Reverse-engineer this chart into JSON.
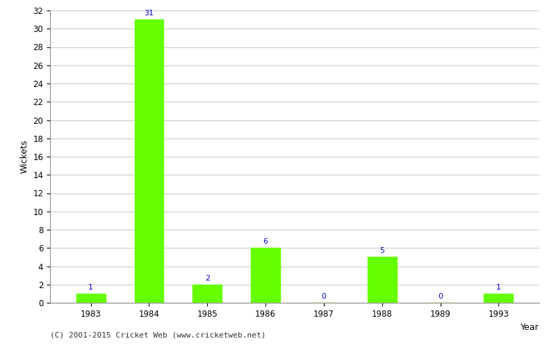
{
  "categories": [
    "1983",
    "1984",
    "1985",
    "1986",
    "1987",
    "1988",
    "1989",
    "1993"
  ],
  "values": [
    1,
    31,
    2,
    6,
    0,
    5,
    0,
    1
  ],
  "bar_color": "#66ff00",
  "bar_edge_color": "#66ff00",
  "title": "",
  "xlabel": "Year",
  "ylabel": "Wickets",
  "ylim": [
    0,
    32
  ],
  "yticks": [
    0,
    2,
    4,
    6,
    8,
    10,
    12,
    14,
    16,
    18,
    20,
    22,
    24,
    26,
    28,
    30,
    32
  ],
  "label_color": "#0000cc",
  "label_fontsize": 8,
  "axis_fontsize": 9,
  "tick_fontsize": 8.5,
  "grid_color": "#cccccc",
  "background_color": "#ffffff",
  "footer_text": "(C) 2001-2015 Cricket Web (www.cricketweb.net)"
}
